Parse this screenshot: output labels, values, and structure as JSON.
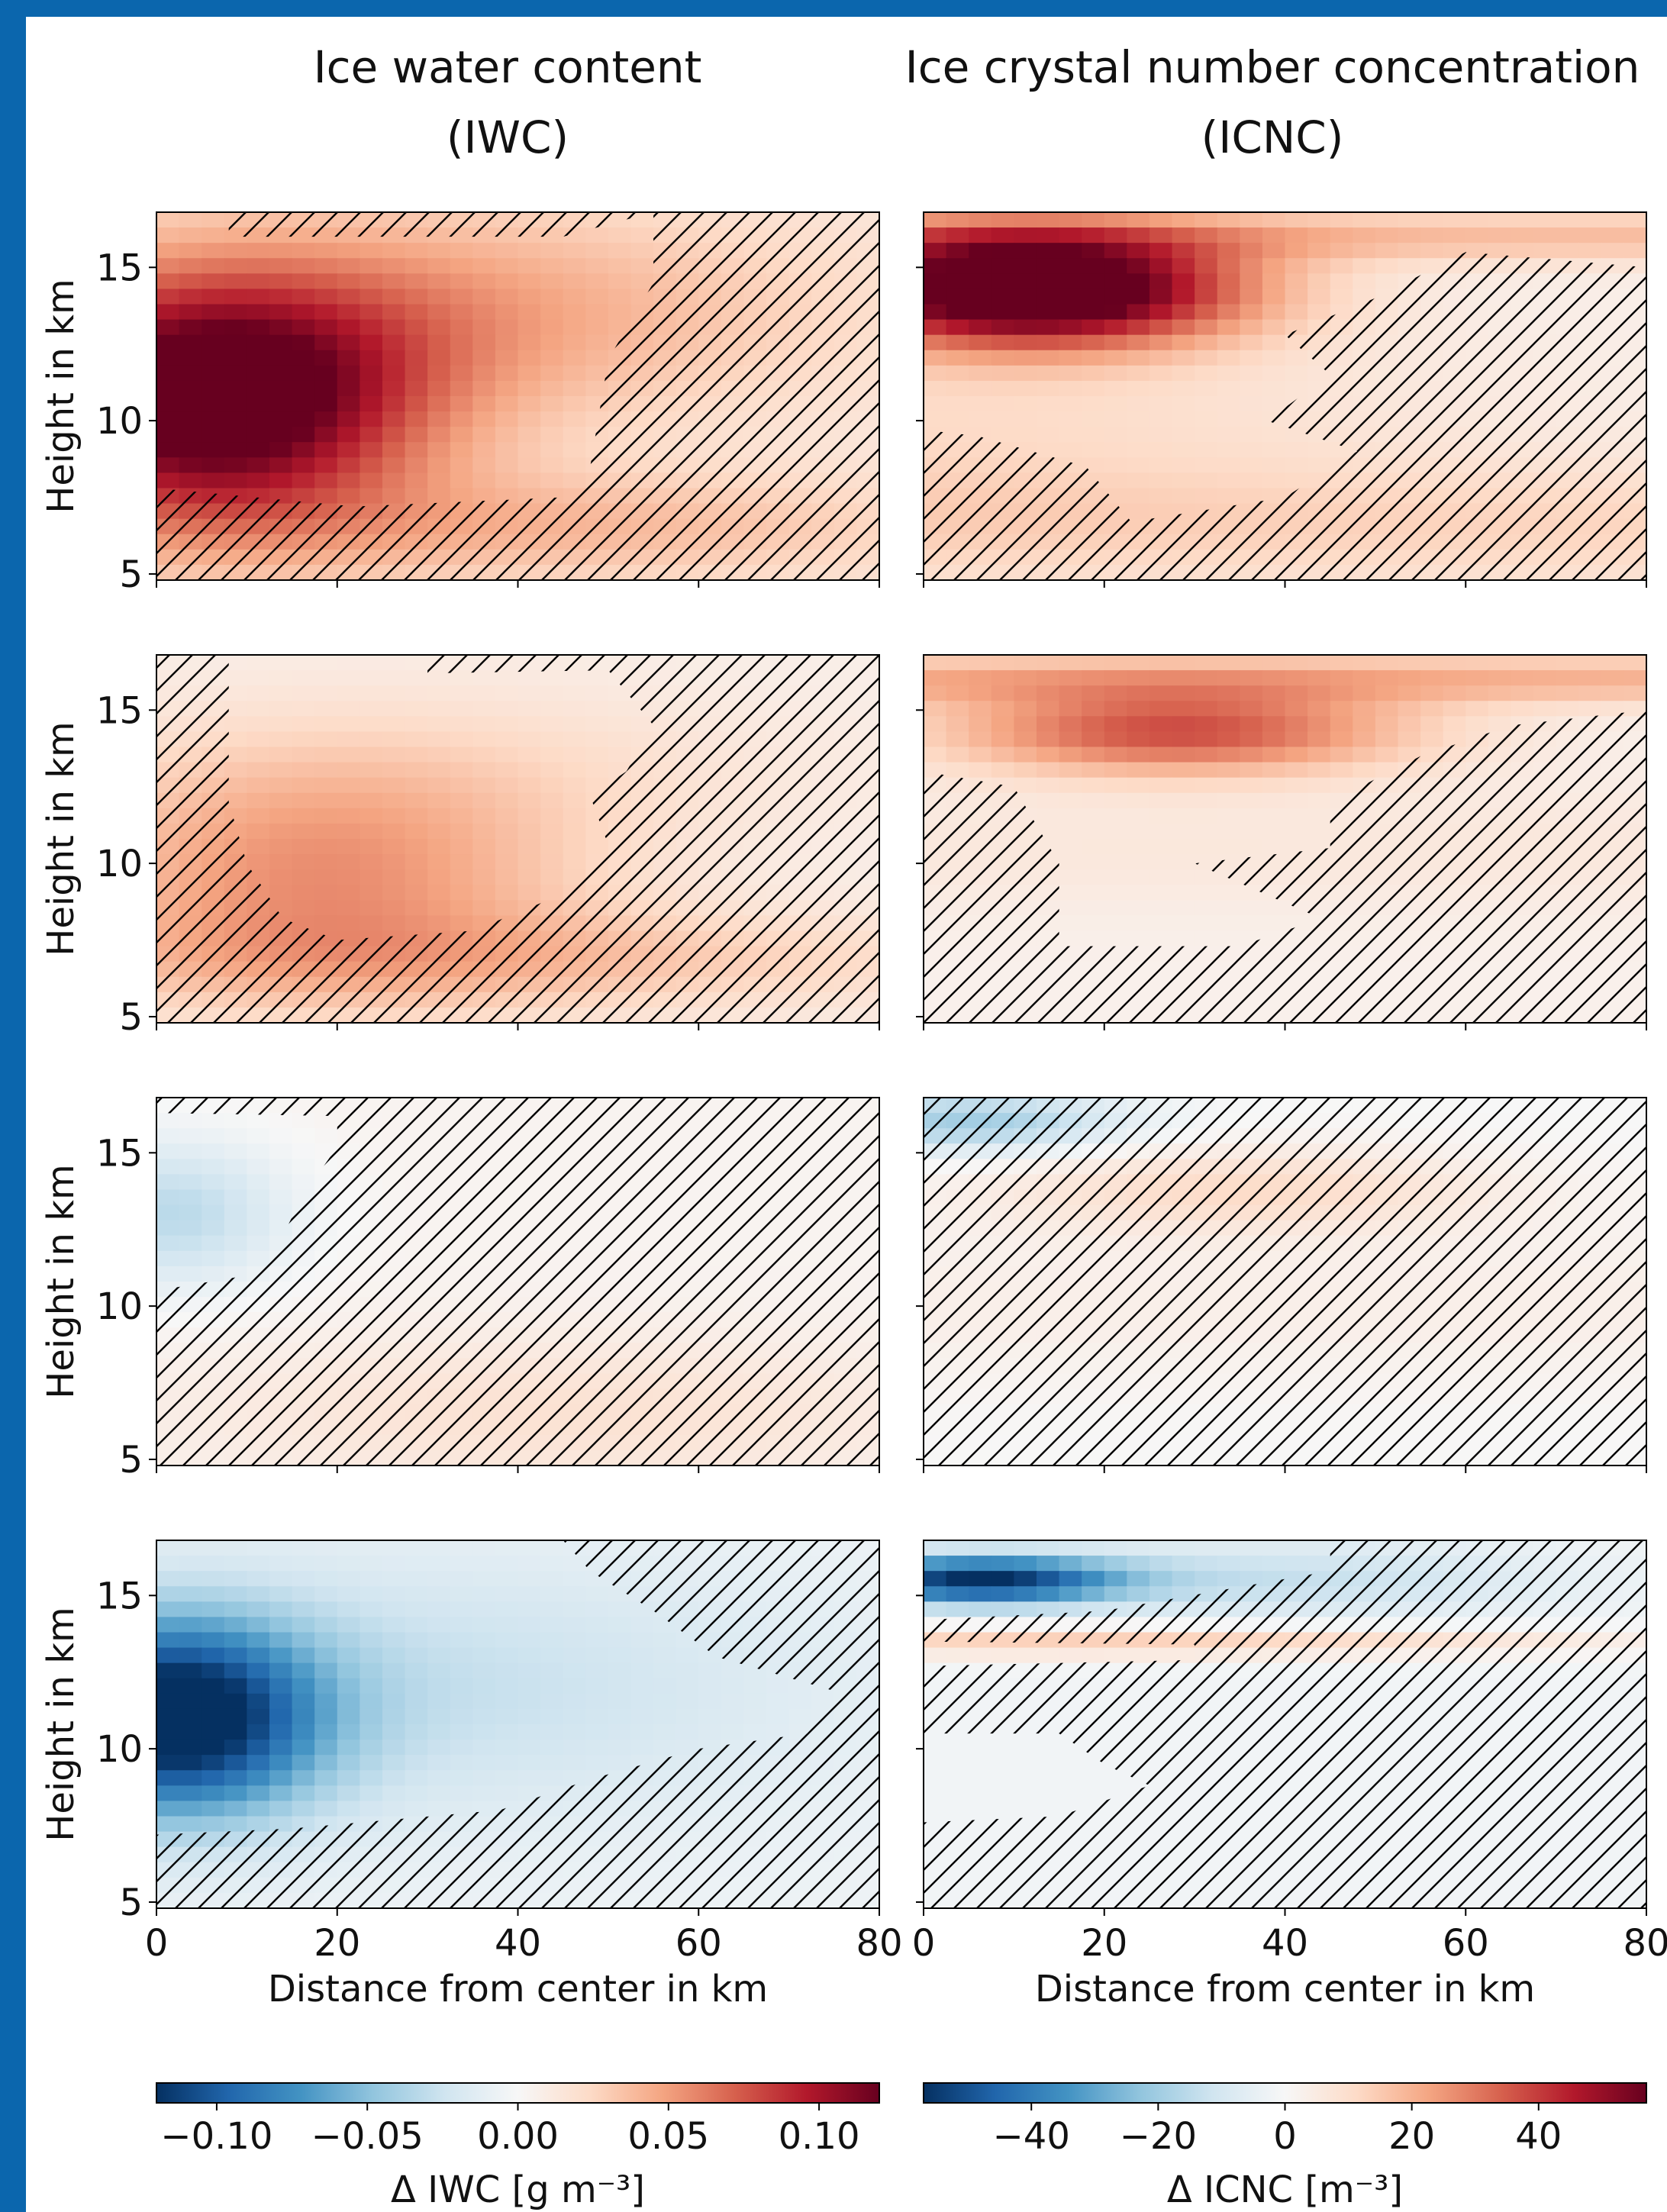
{
  "column_titles": [
    {
      "line1": "Ice water content",
      "line2": "(IWC)"
    },
    {
      "line1": "Ice crystal number concentration",
      "line2": "(ICNC)"
    }
  ],
  "colors": {
    "frame": "#0b66ad",
    "cmap": "RdBu_r"
  },
  "chart_data": {
    "type": "heatmap",
    "layout": "4 rows x 2 columns of height-distance panels with hatching over non-significant regions",
    "xlabel": "Distance from center in km",
    "ylabel": "Height in km",
    "xlim": [
      0,
      80
    ],
    "ylim": [
      4.8,
      16.8
    ],
    "xticks": [
      0,
      20,
      40,
      60,
      80
    ],
    "yticks": [
      5,
      10,
      15
    ],
    "hatch": "//",
    "panels": [
      {
        "row": 1,
        "column": "IWC",
        "variable": "Δ IWC",
        "unit": "g m^-3",
        "sign": "positive",
        "maximum": 0.12,
        "core_x": [
          0,
          20
        ],
        "core_height": [
          8,
          13
        ],
        "significant_to_x": 55
      },
      {
        "row": 1,
        "column": "ICNC",
        "variable": "Δ ICNC",
        "unit": "m^-3",
        "sign": "positive",
        "maximum": 55,
        "core_x": [
          0,
          30
        ],
        "core_height": [
          12,
          16
        ],
        "significant_to_x": 60
      },
      {
        "row": 2,
        "column": "IWC",
        "variable": "Δ IWC",
        "unit": "g m^-3",
        "sign": "positive",
        "maximum": 0.04,
        "core_x": [
          5,
          40
        ],
        "core_height": [
          7,
          12
        ],
        "significant_to_x": 55
      },
      {
        "row": 2,
        "column": "ICNC",
        "variable": "Δ ICNC",
        "unit": "m^-3",
        "sign": "positive",
        "maximum": 35,
        "core_x": [
          10,
          50
        ],
        "core_height": [
          13,
          16
        ],
        "significant_to_x": 55
      },
      {
        "row": 3,
        "column": "IWC",
        "variable": "Δ IWC",
        "unit": "g m^-3",
        "sign": "negative",
        "minimum": -0.03,
        "core_x": [
          0,
          15
        ],
        "core_height": [
          11,
          15
        ],
        "significant_to_x": 20
      },
      {
        "row": 3,
        "column": "ICNC",
        "variable": "Δ ICNC",
        "unit": "m^-3",
        "sign": "mixed",
        "minimum": -15,
        "maximum": 12,
        "core_x": [
          0,
          60
        ],
        "core_height": [
          13,
          16
        ],
        "significant_to_x": 0
      },
      {
        "row": 4,
        "column": "IWC",
        "variable": "Δ IWC",
        "unit": "g m^-3",
        "sign": "negative",
        "minimum": -0.12,
        "core_x": [
          0,
          25
        ],
        "core_height": [
          8,
          14
        ],
        "significant_to_x": 75
      },
      {
        "row": 4,
        "column": "ICNC",
        "variable": "Δ ICNC",
        "unit": "m^-3",
        "sign": "mixed",
        "minimum": -55,
        "maximum": 15,
        "core_x": [
          0,
          20
        ],
        "core_height": [
          14,
          16
        ],
        "significant_to_x": 45
      }
    ],
    "colorbars": [
      {
        "label": "Δ IWC [g m⁻³]",
        "range": [
          -0.12,
          0.12
        ],
        "ticks": [
          "−0.10",
          "−0.05",
          "0.00",
          "0.05",
          "0.10"
        ],
        "tick_values": [
          -0.1,
          -0.05,
          0.0,
          0.05,
          0.1
        ]
      },
      {
        "label": "Δ ICNC [m⁻³]",
        "range": [
          -57,
          57
        ],
        "ticks": [
          "−40",
          "−20",
          "0",
          "20",
          "40"
        ],
        "tick_values": [
          -40,
          -20,
          0,
          20,
          40
        ]
      }
    ]
  }
}
